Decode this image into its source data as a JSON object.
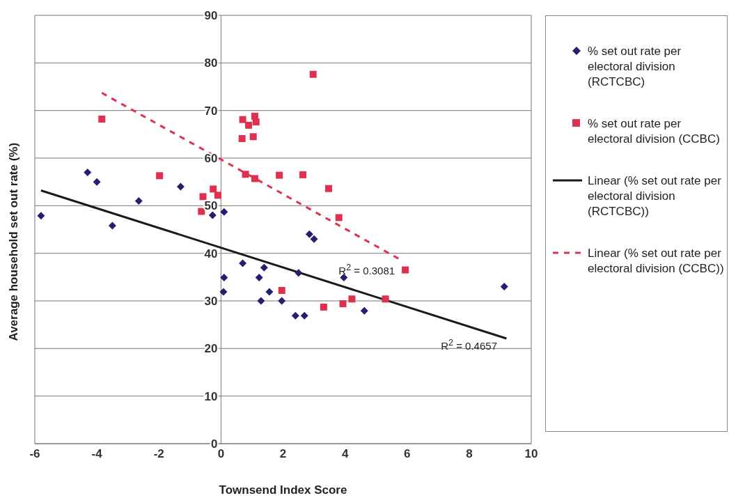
{
  "chart_data": {
    "type": "scatter",
    "xlabel": "Townsend Index Score",
    "ylabel": "Average household set out rate (%)",
    "xlim": [
      -6,
      10
    ],
    "xticks": [
      -6,
      -4,
      -2,
      0,
      2,
      4,
      6,
      8,
      10
    ],
    "ylim": [
      0,
      90
    ],
    "yticks": [
      0,
      10,
      20,
      30,
      40,
      50,
      60,
      70,
      80,
      90
    ],
    "grid": "y",
    "legend": "right",
    "series": [
      {
        "name": "% set out rate per electoral division (RCTCBC)",
        "type": "scatter",
        "marker": "diamond",
        "color": "#241f6e",
        "x": [
          -5.8,
          -4.3,
          -4.0,
          -3.5,
          -2.65,
          -1.3,
          -0.27,
          -0.07,
          0.1,
          2.85,
          3.0,
          0.7,
          1.39,
          0.1,
          1.23,
          2.5,
          3.96,
          0.08,
          1.56,
          1.29,
          1.96,
          2.4,
          2.69,
          4.62,
          9.13
        ],
        "values": [
          47.9,
          57,
          55,
          45.8,
          51,
          54,
          48,
          null,
          48.7,
          44,
          43,
          37.9,
          37,
          34.9,
          34.9,
          35.9,
          34.9,
          31.9,
          31.9,
          30,
          30,
          26.9,
          26.9,
          27.9,
          33
        ]
      },
      {
        "name": "% set out rate per electoral division (CCBC)",
        "type": "scatter",
        "marker": "square",
        "color": "#e03050",
        "x": [
          -3.84,
          -1.98,
          -0.25,
          -0.1,
          -0.58,
          -0.63,
          2.97,
          0.7,
          1.09,
          0.89,
          1.13,
          0.68,
          1.04,
          0.79,
          1.09,
          1.88,
          2.64,
          3.47,
          3.8,
          5.94,
          1.96,
          3.31,
          3.93,
          4.22,
          5.3
        ],
        "values": [
          68.2,
          56.3,
          53.5,
          52.2,
          51.9,
          48.8,
          77.6,
          68.1,
          68.8,
          66.9,
          67.6,
          64.1,
          64.5,
          56.6,
          55.7,
          56.4,
          56.5,
          53.6,
          47.5,
          36.5,
          32.2,
          28.7,
          29.4,
          30.4,
          30.4
        ]
      },
      {
        "name": "Linear (% set out rate per electoral division (RCTCBC))",
        "type": "line",
        "marker": "none",
        "line_style": "solid",
        "color": "#1a1a1a",
        "x": [
          -5.8,
          9.2
        ],
        "values": [
          53.2,
          22.1
        ]
      },
      {
        "name": "Linear (% set out rate per electoral division (CCBC))",
        "type": "line",
        "marker": "none",
        "line_style": "dashed",
        "color": "#e03050",
        "x": [
          -3.84,
          5.8
        ],
        "values": [
          73.7,
          38.6
        ]
      }
    ],
    "annotations": [
      "R$^{2}$ = 0.3081",
      "R$^{2}$ = 0.4657"
    ]
  }
}
